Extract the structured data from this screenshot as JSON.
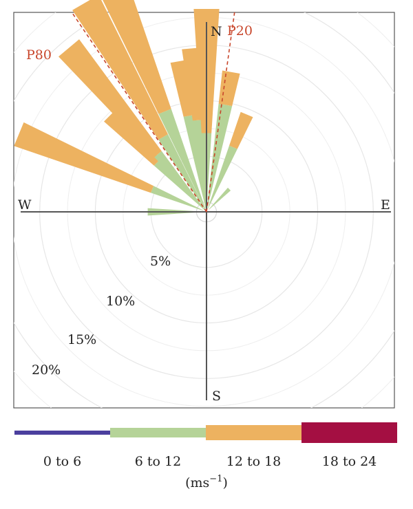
{
  "chart_data": {
    "type": "wind-rose",
    "directions": {
      "north": "N",
      "south": "S",
      "east": "E",
      "west": "W"
    },
    "rings": [
      {
        "value": 5,
        "label": "5%"
      },
      {
        "value": 10,
        "label": "10%"
      },
      {
        "value": 15,
        "label": "15%"
      },
      {
        "value": 20,
        "label": "20%"
      }
    ],
    "rmax": 26,
    "percentiles": [
      {
        "label": "P80",
        "bearing_deg": 326,
        "color": "#c8462b"
      },
      {
        "label": "P20",
        "bearing_deg": 8,
        "color": "#c8462b"
      }
    ],
    "speed_bins": [
      {
        "label": "0 to 6",
        "color": "#4b3f9e"
      },
      {
        "label": "6 to 12",
        "color": "#b5d398"
      },
      {
        "label": "12 to 18",
        "color": "#edb260"
      },
      {
        "label": "18 to 24",
        "color": "#a40f42"
      }
    ],
    "unit_prefix": "(ms",
    "unit_exponent": "−1",
    "unit_suffix": ")",
    "sectors": [
      {
        "bearing": 270,
        "segments": [
          0,
          5.0,
          0,
          0
        ]
      },
      {
        "bearing": 292.5,
        "segments": [
          0,
          5.0,
          13.0,
          0
        ]
      },
      {
        "bearing": 315,
        "segments": [
          0,
          6.0,
          6.0,
          0
        ]
      },
      {
        "bearing": 320,
        "segments": [
          0,
          6.5,
          12.5,
          0
        ]
      },
      {
        "bearing": 330,
        "segments": [
          0,
          7.5,
          14.0,
          0
        ]
      },
      {
        "bearing": 337.5,
        "segments": [
          0,
          9.5,
          13.0,
          0
        ]
      },
      {
        "bearing": 350,
        "segments": [
          0,
          8.5,
          5.0,
          0
        ]
      },
      {
        "bearing": 355,
        "segments": [
          0,
          8.0,
          6.5,
          0
        ]
      },
      {
        "bearing": 0,
        "segments": [
          0.8,
          6.0,
          11.2,
          0
        ]
      },
      {
        "bearing": 10,
        "segments": [
          0,
          9.5,
          3.0,
          0
        ]
      },
      {
        "bearing": 22.5,
        "segments": [
          0,
          6.0,
          3.2,
          0
        ]
      },
      {
        "bearing": 45,
        "segments": [
          0,
          2.6,
          0,
          0
        ]
      }
    ]
  }
}
